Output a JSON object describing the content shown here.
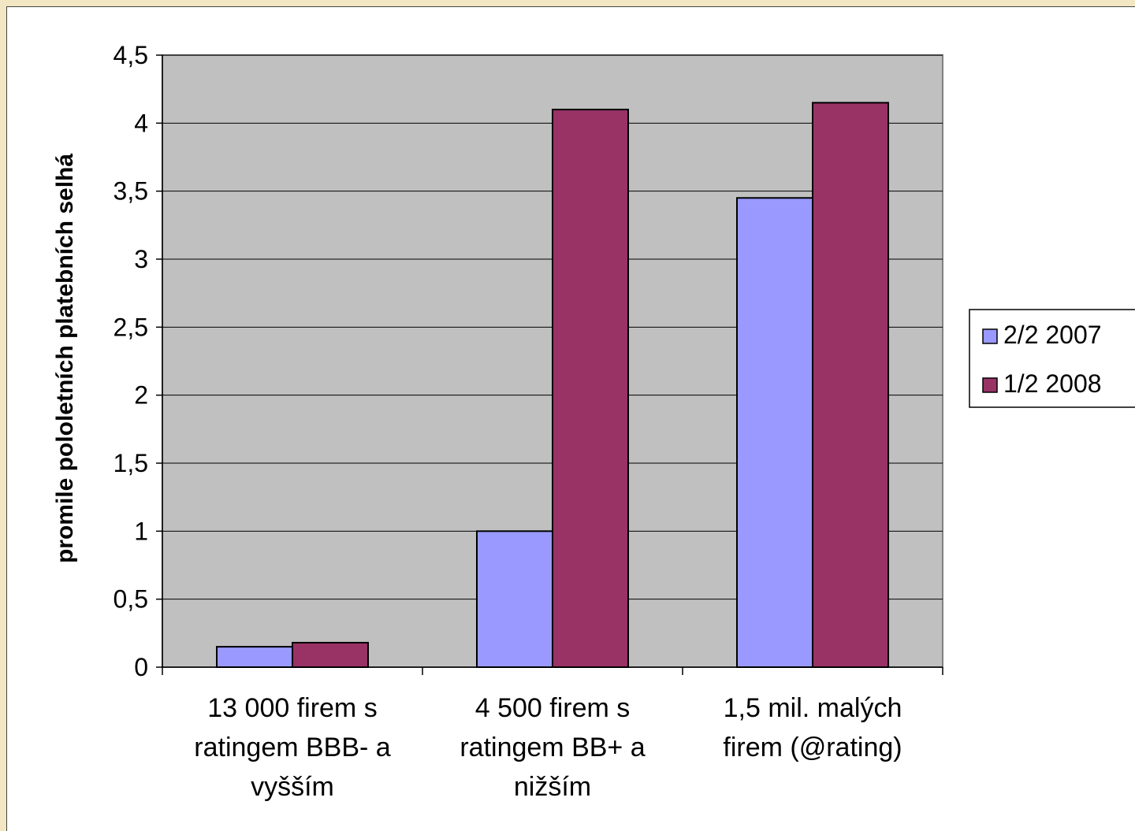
{
  "chart_data": {
    "type": "bar",
    "ylabel": "promile pololetních platebních selhá",
    "ylim": [
      0,
      4.5
    ],
    "ytick_step": 0.5,
    "ytick_labels": [
      "0",
      "0,5",
      "1",
      "1,5",
      "2",
      "2,5",
      "3",
      "3,5",
      "4",
      "4,5"
    ],
    "categories": [
      [
        "13 000 firem s",
        "ratingem BBB- a",
        "vyšším"
      ],
      [
        "4 500 firem s",
        "ratingem BB+ a",
        "nižším"
      ],
      [
        "1,5 mil. malých",
        "firem (@rating)"
      ]
    ],
    "series": [
      {
        "name": "2/2 2007",
        "values": [
          0.15,
          1.0,
          3.45
        ],
        "color": "#9999ff"
      },
      {
        "name": "1/2 2008",
        "values": [
          0.18,
          4.1,
          4.15
        ],
        "color": "#993366"
      }
    ],
    "plot_background": "#c0c0c0",
    "grid": true,
    "legend": "right"
  }
}
